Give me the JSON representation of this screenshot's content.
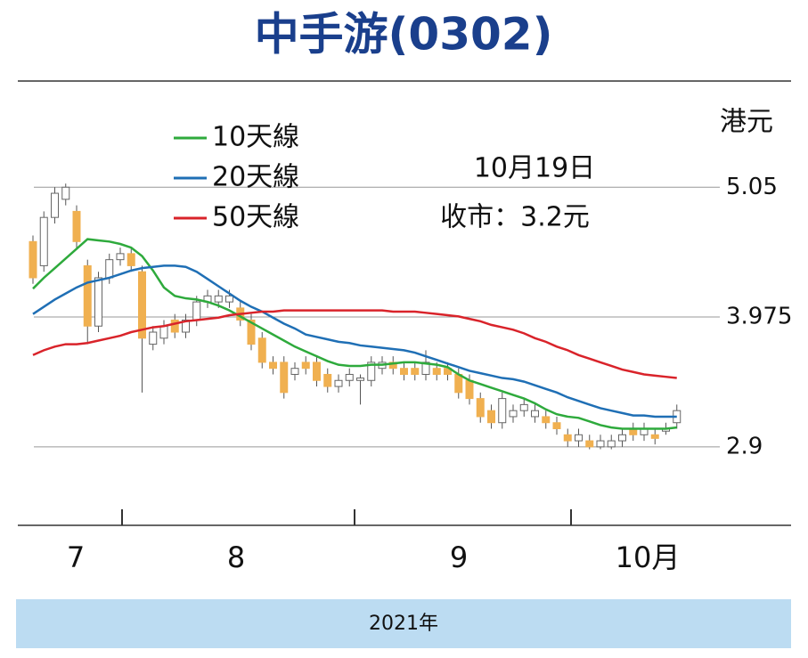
{
  "chart_data": {
    "type": "candlestick",
    "title": "中手游(0302)",
    "unit_label": "港元",
    "annotations": [
      "10月19日",
      "收市：3.2元"
    ],
    "x_labels": [
      "7",
      "8",
      "9",
      "10月"
    ],
    "x_title": "2021年",
    "up_color": "#ffffff",
    "down_color": "#f0b050",
    "open": [
      4.6,
      4.4,
      4.8,
      4.95,
      4.85,
      4.4,
      3.9,
      4.3,
      4.45,
      4.5,
      4.35,
      3.75,
      3.8,
      3.95,
      3.85,
      3.95,
      4.1,
      4.1,
      4.1,
      4.05,
      3.95,
      3.8,
      3.6,
      3.6,
      3.5,
      3.6,
      3.6,
      3.5,
      3.4,
      3.45,
      3.45,
      3.45,
      3.55,
      3.6,
      3.55,
      3.55,
      3.5,
      3.55,
      3.55,
      3.5,
      3.45,
      3.3,
      3.2,
      3.1,
      3.15,
      3.2,
      3.15,
      3.15,
      3.1,
      3.0,
      2.95,
      2.95,
      2.9,
      2.9,
      2.95,
      3.05,
      3.0,
      3.0,
      3.03,
      3.1
    ],
    "high": [
      4.65,
      4.85,
      5.05,
      5.08,
      4.9,
      4.45,
      4.35,
      4.5,
      4.55,
      4.55,
      4.4,
      3.9,
      3.95,
      4.0,
      4.0,
      4.15,
      4.2,
      4.2,
      4.2,
      4.1,
      4.0,
      3.85,
      3.65,
      3.65,
      3.6,
      3.65,
      3.65,
      3.55,
      3.5,
      3.55,
      3.5,
      3.65,
      3.65,
      3.65,
      3.6,
      3.6,
      3.7,
      3.6,
      3.6,
      3.55,
      3.5,
      3.35,
      3.25,
      3.35,
      3.25,
      3.3,
      3.25,
      3.2,
      3.15,
      3.05,
      3.05,
      3.0,
      3.0,
      3.0,
      3.05,
      3.1,
      3.1,
      3.05,
      3.1,
      3.25
    ],
    "low": [
      4.25,
      4.35,
      4.75,
      4.9,
      4.55,
      3.75,
      3.85,
      4.25,
      4.4,
      4.35,
      3.35,
      3.7,
      3.75,
      3.8,
      3.8,
      3.9,
      4.05,
      4.05,
      4.05,
      3.9,
      3.7,
      3.55,
      3.5,
      3.3,
      3.45,
      3.5,
      3.4,
      3.35,
      3.35,
      3.4,
      3.25,
      3.4,
      3.5,
      3.5,
      3.45,
      3.45,
      3.45,
      3.45,
      3.45,
      3.3,
      3.25,
      3.1,
      3.05,
      3.05,
      3.1,
      3.15,
      3.1,
      3.05,
      3.0,
      2.9,
      2.9,
      2.88,
      2.88,
      2.88,
      2.9,
      2.95,
      2.95,
      2.92,
      3.0,
      3.05
    ],
    "close": [
      4.3,
      4.8,
      5.0,
      5.05,
      4.6,
      3.9,
      4.3,
      4.45,
      4.5,
      4.4,
      3.8,
      3.85,
      3.9,
      3.85,
      3.95,
      4.1,
      4.15,
      4.15,
      4.15,
      3.95,
      3.75,
      3.6,
      3.55,
      3.35,
      3.55,
      3.55,
      3.45,
      3.4,
      3.45,
      3.5,
      3.47,
      3.6,
      3.6,
      3.55,
      3.5,
      3.5,
      3.6,
      3.5,
      3.5,
      3.35,
      3.3,
      3.15,
      3.1,
      3.3,
      3.2,
      3.25,
      3.2,
      3.1,
      3.05,
      2.95,
      3.0,
      2.9,
      2.95,
      2.95,
      3.0,
      3.0,
      3.05,
      2.97,
      3.05,
      3.2
    ],
    "series": [
      {
        "name": "10天線",
        "color": "#2eaa3c",
        "values": [
          4.21,
          4.3,
          4.38,
          4.46,
          4.54,
          4.62,
          4.61,
          4.6,
          4.58,
          4.55,
          4.48,
          4.36,
          4.22,
          4.15,
          4.13,
          4.12,
          4.1,
          4.07,
          4.03,
          3.98,
          3.93,
          3.88,
          3.83,
          3.78,
          3.73,
          3.69,
          3.65,
          3.61,
          3.58,
          3.57,
          3.57,
          3.58,
          3.58,
          3.59,
          3.6,
          3.6,
          3.59,
          3.58,
          3.56,
          3.5,
          3.45,
          3.42,
          3.39,
          3.36,
          3.33,
          3.3,
          3.26,
          3.21,
          3.17,
          3.15,
          3.14,
          3.11,
          3.08,
          3.06,
          3.05,
          3.05,
          3.05,
          3.05,
          3.05,
          3.06
        ]
      },
      {
        "name": "20天線",
        "color": "#1f6fb5",
        "values": [
          4.0,
          4.06,
          4.12,
          4.17,
          4.22,
          4.26,
          4.28,
          4.3,
          4.33,
          4.36,
          4.38,
          4.39,
          4.4,
          4.4,
          4.39,
          4.35,
          4.29,
          4.23,
          4.17,
          4.11,
          4.06,
          4.02,
          3.97,
          3.92,
          3.88,
          3.83,
          3.81,
          3.79,
          3.77,
          3.76,
          3.74,
          3.73,
          3.72,
          3.71,
          3.7,
          3.68,
          3.65,
          3.62,
          3.59,
          3.56,
          3.53,
          3.51,
          3.49,
          3.47,
          3.46,
          3.44,
          3.41,
          3.38,
          3.35,
          3.31,
          3.28,
          3.25,
          3.22,
          3.2,
          3.18,
          3.16,
          3.16,
          3.15,
          3.15,
          3.15
        ]
      },
      {
        "name": "50天線",
        "color": "#d9232a",
        "values": [
          3.66,
          3.7,
          3.73,
          3.75,
          3.75,
          3.76,
          3.78,
          3.8,
          3.82,
          3.85,
          3.87,
          3.89,
          3.9,
          3.92,
          3.94,
          3.95,
          3.96,
          3.97,
          3.99,
          4.0,
          4.01,
          4.02,
          4.02,
          4.03,
          4.03,
          4.03,
          4.03,
          4.03,
          4.03,
          4.03,
          4.03,
          4.03,
          4.03,
          4.02,
          4.02,
          4.02,
          4.01,
          4.0,
          3.99,
          3.98,
          3.96,
          3.94,
          3.91,
          3.89,
          3.87,
          3.84,
          3.8,
          3.77,
          3.73,
          3.7,
          3.66,
          3.63,
          3.6,
          3.57,
          3.54,
          3.52,
          3.5,
          3.49,
          3.48,
          3.47
        ]
      }
    ],
    "ylim": [
      2.25,
      5.9
    ],
    "yticks": [
      5.05,
      3.975,
      2.9
    ],
    "grid": true
  }
}
